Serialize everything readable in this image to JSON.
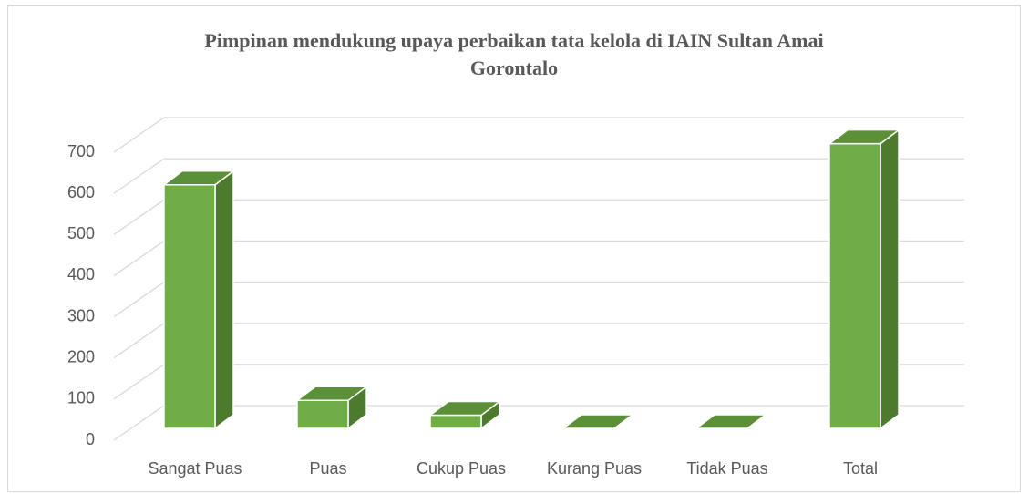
{
  "chart_data": {
    "type": "bar3d",
    "title": "Pimpinan mendukung upaya perbaikan tata kelola di  IAIN Sultan Amai Gorontalo",
    "categories": [
      "Sangat Puas",
      "Puas",
      "Cukup Puas",
      "Kurang Puas",
      "Tidak Puas",
      "Total"
    ],
    "values": [
      592,
      68,
      32,
      0,
      0,
      692
    ],
    "color": "#70ad47",
    "ylim": [
      0,
      700
    ],
    "yticks": [
      0,
      100,
      200,
      300,
      400,
      500,
      600,
      700
    ],
    "grid": true
  }
}
